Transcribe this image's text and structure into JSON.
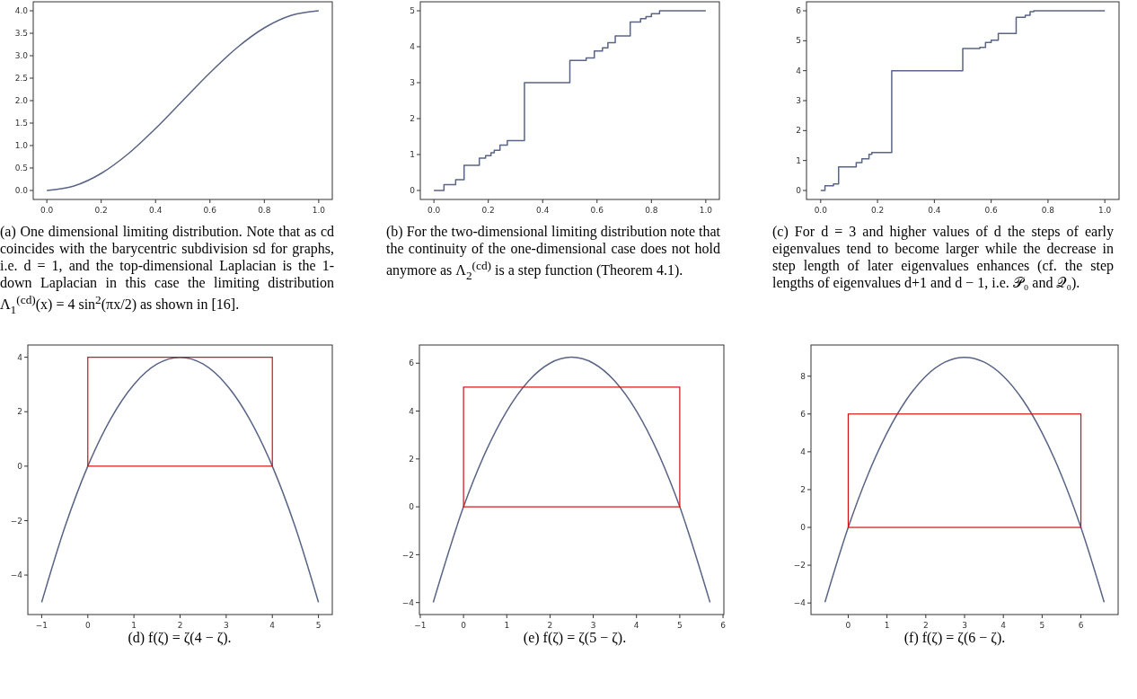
{
  "chart_data": [
    {
      "type": "line",
      "xlim": [
        -0.05,
        1.05
      ],
      "ylim": [
        -0.2,
        4.2
      ],
      "xticks": [
        {
          "value": 0,
          "label": "0.0"
        },
        {
          "value": 0.2,
          "label": "0.2"
        },
        {
          "value": 0.4,
          "label": "0.4"
        },
        {
          "value": 0.6,
          "label": "0.6"
        },
        {
          "value": 0.8,
          "label": "0.8"
        },
        {
          "value": 1,
          "label": "1.0"
        }
      ],
      "yticks": [
        {
          "value": 0,
          "label": "0.0"
        },
        {
          "value": 0.5,
          "label": "0.5"
        },
        {
          "value": 1,
          "label": "1.0"
        },
        {
          "value": 1.5,
          "label": "1.5"
        },
        {
          "value": 2,
          "label": "2.0"
        },
        {
          "value": 2.5,
          "label": "2.5"
        },
        {
          "value": 3,
          "label": "3.0"
        },
        {
          "value": 3.5,
          "label": "3.5"
        },
        {
          "value": 4,
          "label": "4.0"
        }
      ],
      "series": [
        {
          "color": "#596487",
          "x": [
            0,
            0.1,
            0.2,
            0.3,
            0.4,
            0.5,
            0.6,
            0.7,
            0.8,
            0.9,
            1
          ],
          "values": [
            0,
            0.1,
            0.38,
            0.82,
            1.38,
            2,
            2.62,
            3.18,
            3.62,
            3.9,
            4
          ]
        }
      ],
      "annotations": [
        "(a) One dimensional limiting distribution. Note that as cd coincides with the barycentric subdivision sd for graphs, i.e. d = 1, and the top-dimensional Laplacian is the 1-down Laplacian in this case the limiting distribution Λ$_{1}$$^{(cd)}$(x) = 4 sin$^{2}$(πx/2) as shown in [16]."
      ]
    },
    {
      "type": "step",
      "xlim": [
        -0.05,
        1.05
      ],
      "ylim": [
        -0.25,
        5.25
      ],
      "xticks": [
        {
          "value": 0,
          "label": "0.0"
        },
        {
          "value": 0.2,
          "label": "0.2"
        },
        {
          "value": 0.4,
          "label": "0.4"
        },
        {
          "value": 0.6,
          "label": "0.6"
        },
        {
          "value": 0.8,
          "label": "0.8"
        },
        {
          "value": 1,
          "label": "1.0"
        }
      ],
      "yticks": [
        0,
        1,
        2,
        3,
        4,
        5
      ],
      "series": [
        {
          "color": "#596487",
          "x": [
            0,
            0.037,
            0.08,
            0.111,
            0.167,
            0.19,
            0.21,
            0.222,
            0.243,
            0.27,
            0.333,
            0.5,
            0.56,
            0.59,
            0.62,
            0.64,
            0.667,
            0.722,
            0.76,
            0.78,
            0.8,
            0.83,
            1
          ],
          "values": [
            0,
            0.16,
            0.3,
            0.7,
            0.9,
            0.97,
            1.05,
            1.12,
            1.26,
            1.39,
            3,
            3.62,
            3.69,
            3.88,
            3.97,
            4.11,
            4.3,
            4.69,
            4.78,
            4.84,
            4.92,
            5,
            5
          ]
        }
      ],
      "annotations": [
        "(b) For the two-dimensional limiting distribution note that the continuity of the one-dimensional case does not hold anymore as Λ$_{2}$$^{(cd)}$ is a step function (Theorem 4.1)."
      ]
    },
    {
      "type": "step",
      "xlim": [
        -0.05,
        1.05
      ],
      "ylim": [
        -0.3,
        6.3
      ],
      "xticks": [
        {
          "value": 0,
          "label": "0.0"
        },
        {
          "value": 0.2,
          "label": "0.2"
        },
        {
          "value": 0.4,
          "label": "0.4"
        },
        {
          "value": 0.6,
          "label": "0.6"
        },
        {
          "value": 0.8,
          "label": "0.8"
        },
        {
          "value": 1,
          "label": "1.0"
        }
      ],
      "yticks": [
        0,
        1,
        2,
        3,
        4,
        5,
        6
      ],
      "series": [
        {
          "color": "#596487",
          "x": [
            0,
            0.015,
            0.045,
            0.063,
            0.125,
            0.145,
            0.17,
            0.18,
            0.25,
            0.5,
            0.56,
            0.58,
            0.6,
            0.625,
            0.688,
            0.72,
            0.737,
            0.75,
            1
          ],
          "values": [
            0,
            0.16,
            0.22,
            0.79,
            0.93,
            1.06,
            1.21,
            1.27,
            4,
            4.74,
            4.78,
            4.94,
            5.02,
            5.24,
            5.78,
            5.85,
            5.97,
            6,
            6
          ]
        }
      ],
      "annotations": [
        "(c) For d = 3 and higher values of d the steps of early eigenvalues tend to become larger while the decrease in step length of later eigenvalues enhances (cf. the step lengths of eigenvalues d+1 and d − 1, i.e. 𝒫₀ and 𝒬₀)."
      ]
    },
    {
      "type": "line",
      "xlim": [
        -1.3,
        5.3
      ],
      "ylim": [
        -5.45,
        4.45
      ],
      "xticks": [
        {
          "value": -1,
          "label": "−1"
        },
        0,
        1,
        2,
        3,
        4,
        5
      ],
      "yticks": [
        {
          "value": -4,
          "label": "−4"
        },
        {
          "value": -2,
          "label": "−2"
        },
        0,
        2,
        4
      ],
      "series": [
        {
          "color": "#596487",
          "x": [
            -1,
            -0.5,
            0,
            0.5,
            1,
            1.5,
            2,
            2.5,
            3,
            3.5,
            4,
            4.5,
            5
          ],
          "values": [
            -5,
            -2.25,
            0,
            1.75,
            3,
            3.75,
            4,
            3.75,
            3,
            1.75,
            0,
            -2.25,
            -5
          ]
        },
        {
          "type": "histogram",
          "color": "#d01010",
          "bins": [
            0,
            4
          ],
          "values": [
            4
          ]
        }
      ],
      "annotations": [
        "(d) f(ζ) = ζ(4 − ζ)."
      ]
    },
    {
      "type": "line",
      "xlim": [
        -1.02,
        6.02
      ],
      "ylim": [
        -4.5,
        6.76
      ],
      "xticks": [
        {
          "value": -1,
          "label": "−1"
        },
        0,
        1,
        2,
        3,
        4,
        5,
        6
      ],
      "yticks": [
        {
          "value": -4,
          "label": "−4"
        },
        {
          "value": -2,
          "label": "−2"
        },
        0,
        2,
        4,
        6
      ],
      "series": [
        {
          "color": "#596487",
          "x": [
            -0.7,
            0,
            0.5,
            1,
            1.5,
            2,
            2.5,
            3,
            3.5,
            4,
            4.5,
            5,
            5.7
          ],
          "values": [
            -3.99,
            0,
            2.25,
            4,
            5.25,
            6,
            6.25,
            6,
            5.25,
            4,
            2.25,
            0,
            -3.99
          ]
        },
        {
          "type": "histogram",
          "color": "#d01010",
          "bins": [
            0,
            5
          ],
          "values": [
            5
          ]
        }
      ],
      "annotations": [
        "(e) f(ζ) = ζ(5 − ζ)."
      ]
    },
    {
      "type": "line",
      "xlim": [
        -0.96,
        6.96
      ],
      "ylim": [
        -4.61,
        9.65
      ],
      "xticks": [
        0,
        1,
        2,
        3,
        4,
        5,
        6
      ],
      "yticks": [
        {
          "value": -4,
          "label": "−4"
        },
        {
          "value": -2,
          "label": "−2"
        },
        0,
        2,
        4,
        6,
        8
      ],
      "series": [
        {
          "color": "#596487",
          "x": [
            -0.6,
            0,
            0.5,
            1,
            1.5,
            2,
            2.5,
            3,
            3.5,
            4,
            4.5,
            5,
            5.5,
            6,
            6.6
          ],
          "values": [
            -3.96,
            0,
            2.75,
            5,
            6.75,
            8,
            8.75,
            9,
            8.75,
            8,
            6.75,
            5,
            2.75,
            0,
            -3.96
          ]
        },
        {
          "type": "histogram",
          "color": "#d01010",
          "bins": [
            0,
            6
          ],
          "values": [
            6
          ]
        }
      ],
      "annotations": [
        "(f) f(ζ) = ζ(6 − ζ)."
      ]
    }
  ]
}
